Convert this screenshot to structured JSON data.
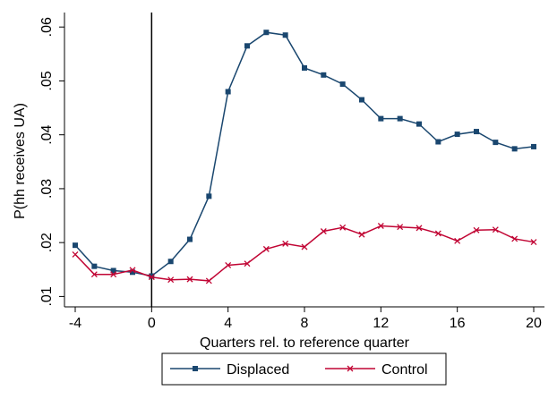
{
  "chart_data": {
    "type": "line",
    "title": "",
    "xlabel": "Quarters rel. to reference quarter",
    "ylabel": "P(hh receives UA)",
    "xlim": [
      -4,
      20
    ],
    "ylim": [
      0.01,
      0.06
    ],
    "xticks": [
      -4,
      0,
      4,
      8,
      12,
      16,
      20
    ],
    "xtick_labels": [
      "-4",
      "0",
      "4",
      "8",
      "12",
      "16",
      "20"
    ],
    "yticks": [
      0.01,
      0.02,
      0.03,
      0.04,
      0.05,
      0.06
    ],
    "ytick_labels": [
      ".01",
      ".02",
      ".03",
      ".04",
      ".05",
      ".06"
    ],
    "reference_line_x": 0,
    "grid": false,
    "legend_position": "bottom",
    "x": [
      -4,
      -3,
      -2,
      -1,
      0,
      1,
      2,
      3,
      4,
      5,
      6,
      7,
      8,
      9,
      10,
      11,
      12,
      13,
      14,
      15,
      16,
      17,
      18,
      19,
      20
    ],
    "series": [
      {
        "name": "Displaced",
        "color": "#1a476f",
        "marker": "square",
        "values": [
          0.0195,
          0.0156,
          0.0148,
          0.0145,
          0.0138,
          0.0165,
          0.0206,
          0.0286,
          0.048,
          0.0565,
          0.059,
          0.0585,
          0.0524,
          0.0511,
          0.0494,
          0.0465,
          0.043,
          0.043,
          0.042,
          0.0387,
          0.0401,
          0.0406,
          0.0386,
          0.0374,
          0.0378
        ]
      },
      {
        "name": "Control",
        "color": "#c10534",
        "marker": "x",
        "values": [
          0.0178,
          0.0141,
          0.0141,
          0.0149,
          0.0136,
          0.0131,
          0.0132,
          0.0129,
          0.0158,
          0.0161,
          0.0188,
          0.0198,
          0.0192,
          0.0221,
          0.0228,
          0.0215,
          0.0231,
          0.0229,
          0.0227,
          0.0217,
          0.0203,
          0.0223,
          0.0224,
          0.0207,
          0.0201
        ]
      }
    ]
  }
}
